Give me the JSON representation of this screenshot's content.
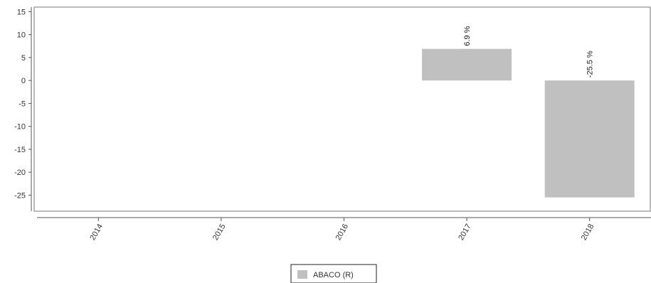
{
  "chart_data": {
    "type": "bar",
    "categories": [
      "2014",
      "2015",
      "2016",
      "2017",
      "2018"
    ],
    "series": [
      {
        "name": "ABACO (R)",
        "values": [
          null,
          null,
          null,
          6.9,
          -25.5
        ],
        "labels": [
          "",
          "",
          "",
          "6.9 %",
          "-25.5 %"
        ],
        "color": "#c0c0c0"
      }
    ],
    "ylim": [
      -28.5,
      16
    ],
    "yticks": [
      15,
      10,
      5,
      0,
      -5,
      -10,
      -15,
      -20,
      -25
    ],
    "grid": false,
    "legend_position": "bottom-center",
    "title": "",
    "xlabel": "",
    "ylabel": ""
  },
  "colors": {
    "bar": "#c0c0c0",
    "axis": "#555555",
    "frame": "#777777"
  }
}
